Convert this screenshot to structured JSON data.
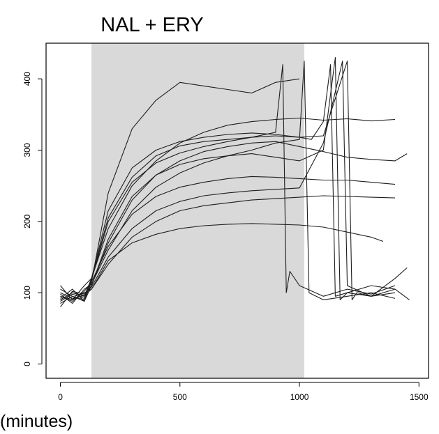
{
  "chart_data": {
    "type": "line",
    "title": "NAL + ERY",
    "xlabel": "(minutes)",
    "ylabel": "",
    "xlim": [
      -60,
      1540
    ],
    "ylim": [
      -20,
      450
    ],
    "x_ticks": [
      0,
      500,
      1000,
      1500
    ],
    "x_tick_labels": [
      "0",
      "500",
      "1000",
      "1500"
    ],
    "y_ticks": [
      0,
      100,
      200,
      300,
      400
    ],
    "y_tick_labels": [
      "0",
      "100",
      "200",
      "300",
      "400"
    ],
    "grid": false,
    "legend": "none",
    "shaded_region": {
      "x_start": 130,
      "x_end": 1020,
      "color": "#d9d9d9"
    },
    "line_color": "#1e1e1e",
    "series": [
      {
        "x": [
          0,
          50,
          100,
          130,
          200,
          300,
          400,
          500,
          600,
          700,
          800,
          900,
          1000
        ],
        "y": [
          95,
          88,
          102,
          115,
          240,
          330,
          370,
          395,
          390,
          385,
          380,
          395,
          400
        ]
      },
      {
        "x": [
          0,
          50,
          100,
          130,
          200,
          300,
          400,
          500,
          600,
          700,
          800,
          900,
          1000,
          1100,
          1200,
          1300,
          1400
        ],
        "y": [
          90,
          100,
          95,
          120,
          190,
          250,
          285,
          310,
          325,
          335,
          340,
          343,
          345,
          342,
          344,
          341,
          343
        ]
      },
      {
        "x": [
          0,
          50,
          100,
          130,
          200,
          300,
          400,
          500,
          600,
          700,
          800,
          900,
          1000,
          1100,
          1200,
          1300,
          1400,
          1450
        ],
        "y": [
          100,
          92,
          96,
          110,
          170,
          230,
          265,
          285,
          298,
          305,
          310,
          312,
          305,
          298,
          290,
          287,
          285,
          295
        ]
      },
      {
        "x": [
          0,
          50,
          100,
          130,
          200,
          300,
          400,
          500,
          600,
          700,
          800,
          900,
          1000,
          1100,
          1200,
          1300,
          1400
        ],
        "y": [
          85,
          95,
          90,
          115,
          165,
          210,
          235,
          248,
          255,
          260,
          263,
          262,
          260,
          258,
          258,
          255,
          252
        ]
      },
      {
        "x": [
          0,
          50,
          100,
          130,
          200,
          300,
          400,
          500,
          600,
          700,
          800,
          900,
          1000,
          1100,
          1200,
          1300,
          1350
        ],
        "y": [
          110,
          90,
          100,
          105,
          145,
          170,
          182,
          190,
          194,
          196,
          197,
          196,
          195,
          192,
          185,
          178,
          172
        ]
      },
      {
        "x": [
          0,
          50,
          100,
          130,
          200,
          300,
          400,
          500,
          600,
          700,
          800,
          900,
          930,
          945,
          960,
          1000,
          1100,
          1200,
          1300,
          1400
        ],
        "y": [
          92,
          105,
          88,
          118,
          200,
          255,
          282,
          296,
          305,
          312,
          318,
          325,
          420,
          100,
          130,
          110,
          95,
          105,
          98,
          110
        ]
      },
      {
        "x": [
          0,
          50,
          100,
          130,
          200,
          300,
          400,
          500,
          600,
          700,
          800,
          900,
          1000,
          1020,
          1040,
          1100,
          1200,
          1300,
          1400
        ],
        "y": [
          98,
          85,
          105,
          112,
          160,
          215,
          248,
          268,
          282,
          292,
          300,
          310,
          315,
          425,
          100,
          90,
          95,
          100,
          92
        ]
      },
      {
        "x": [
          0,
          50,
          100,
          130,
          200,
          300,
          400,
          500,
          600,
          700,
          800,
          900,
          1000,
          1050,
          1100,
          1130,
          1150,
          1200,
          1300,
          1400,
          1460
        ],
        "y": [
          88,
          98,
          92,
          120,
          215,
          275,
          300,
          312,
          318,
          322,
          324,
          322,
          318,
          315,
          340,
          420,
          95,
          100,
          110,
          105,
          90
        ]
      },
      {
        "x": [
          0,
          50,
          100,
          130,
          200,
          300,
          400,
          500,
          600,
          700,
          800,
          900,
          1000,
          1100,
          1150,
          1170,
          1200,
          1300,
          1400
        ],
        "y": [
          105,
          95,
          88,
          110,
          175,
          235,
          265,
          280,
          288,
          292,
          295,
          290,
          285,
          300,
          430,
          90,
          100,
          95,
          105
        ]
      },
      {
        "x": [
          0,
          50,
          100,
          130,
          200,
          300,
          400,
          500,
          600,
          700,
          800,
          900,
          1000,
          1100,
          1180,
          1200,
          1300,
          1400,
          1450
        ],
        "y": [
          80,
          102,
          98,
          108,
          150,
          190,
          215,
          228,
          236,
          240,
          243,
          245,
          247,
          310,
          425,
          110,
          95,
          120,
          135
        ]
      },
      {
        "x": [
          0,
          50,
          100,
          130,
          200,
          300,
          400,
          500,
          600,
          700,
          800,
          900,
          1000,
          1100,
          1200,
          1220,
          1240,
          1300,
          1400
        ],
        "y": [
          95,
          90,
          110,
          120,
          205,
          262,
          292,
          306,
          312,
          315,
          318,
          320,
          318,
          320,
          425,
          90,
          100,
          95,
          100
        ]
      },
      {
        "x": [
          0,
          50,
          100,
          130,
          200,
          300,
          400,
          500,
          600,
          700,
          800,
          900,
          1000,
          1100,
          1200,
          1300,
          1400
        ],
        "y": [
          90,
          100,
          96,
          105,
          140,
          178,
          200,
          215,
          222,
          226,
          230,
          232,
          234,
          236,
          235,
          234,
          233
        ]
      }
    ]
  }
}
